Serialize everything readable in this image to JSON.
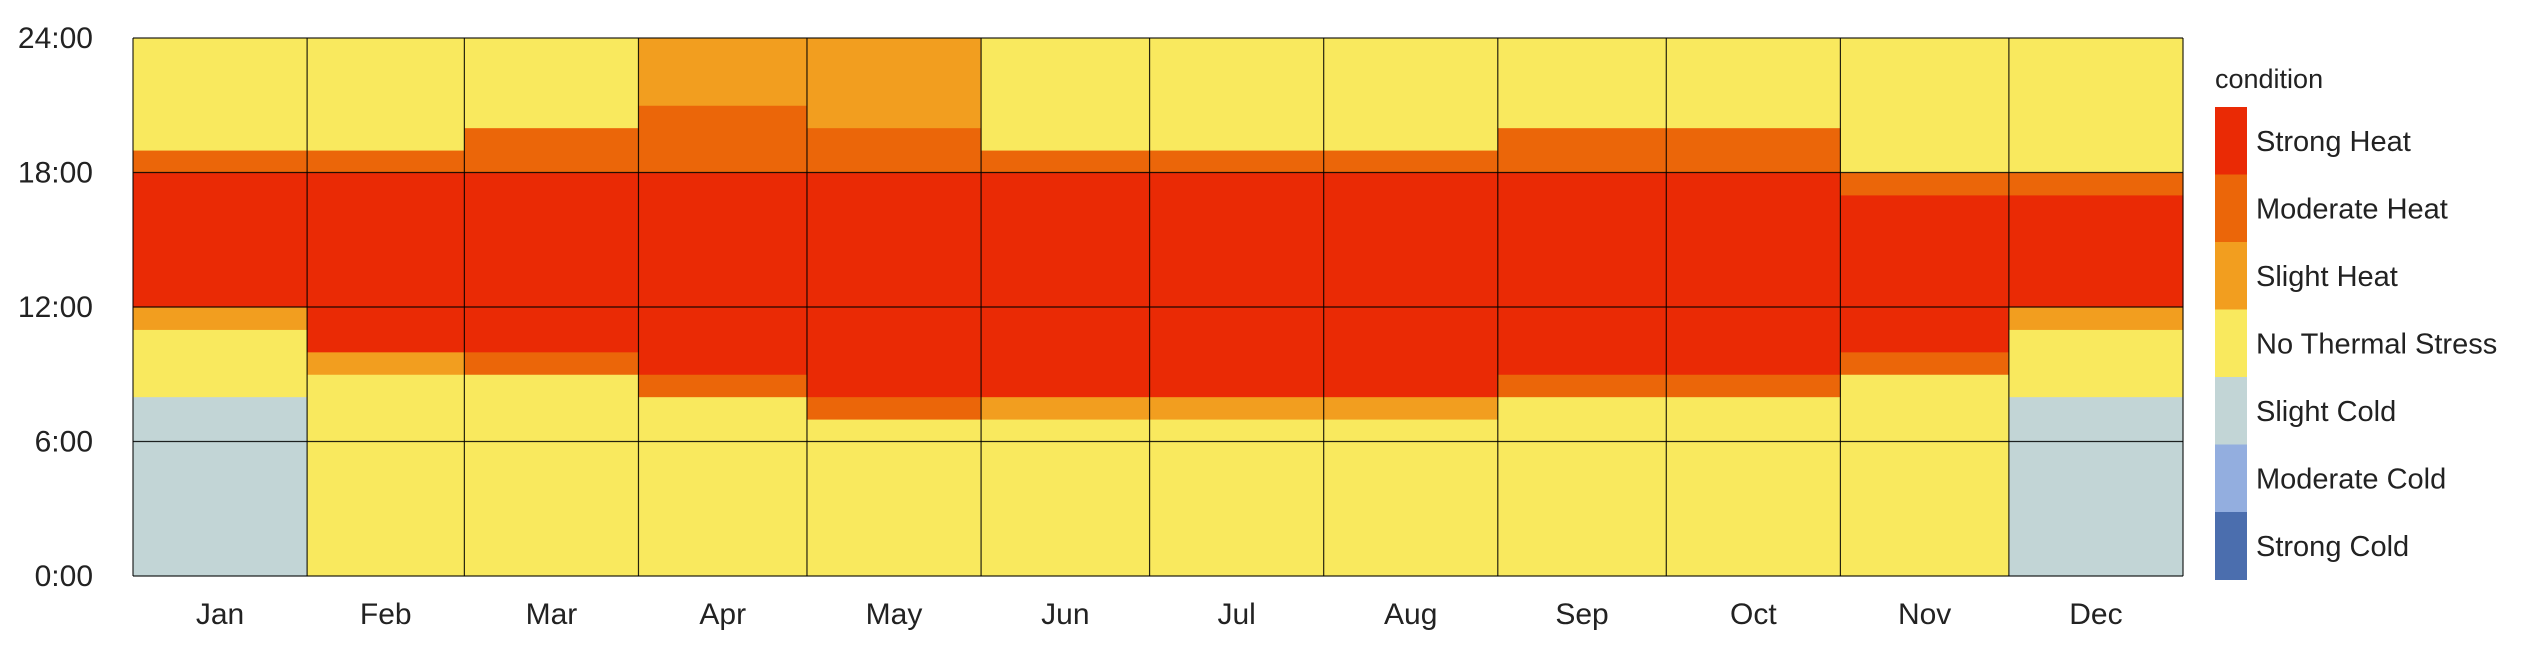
{
  "chart_data": {
    "type": "heatmap",
    "title": "",
    "xlabel": "",
    "ylabel": "",
    "x_tick_labels": [
      "Jan",
      "Feb",
      "Mar",
      "Apr",
      "May",
      "Jun",
      "Jul",
      "Aug",
      "Sep",
      "Oct",
      "Nov",
      "Dec"
    ],
    "y_tick_labels": [
      "0:00",
      "6:00",
      "12:00",
      "18:00",
      "24:00"
    ],
    "y_tick_values": [
      0,
      6,
      12,
      18,
      24
    ],
    "ylim": [
      0,
      24
    ],
    "days_in_month": [
      31,
      28,
      31,
      30,
      31,
      30,
      31,
      31,
      30,
      31,
      30,
      31
    ],
    "grid": true,
    "legend": {
      "title": "condition",
      "placement": "right",
      "categories": [
        {
          "label": "Strong Heat",
          "color": "#EA2A05"
        },
        {
          "label": "Moderate Heat",
          "color": "#EB6609"
        },
        {
          "label": "Slight Heat",
          "color": "#F29E1F"
        },
        {
          "label": "No Thermal Stress",
          "color": "#F9E95E"
        },
        {
          "label": "Slight Cold",
          "color": "#C2D5D6"
        },
        {
          "label": "Moderate Cold",
          "color": "#93AEDF"
        },
        {
          "label": "Strong Cold",
          "color": "#4B6EAE"
        }
      ]
    },
    "approximate_monthly_hourly_condition": {
      "Jan": {
        "00:00-08:00": "Slight Cold",
        "08:00-11:00": "No Thermal Stress",
        "11:00-12:00": "Slight Heat",
        "12:00-18:00": "Strong Heat",
        "18:00-19:00": "Moderate Heat",
        "19:00-24:00": "No Thermal Stress"
      },
      "Feb": {
        "00:00-09:00": "No Thermal Stress",
        "09:00-10:00": "Slight Heat",
        "10:00-18:00": "Strong Heat",
        "18:00-19:00": "Moderate Heat",
        "19:00-24:00": "No Thermal Stress"
      },
      "Mar": {
        "00:00-09:00": "No Thermal Stress",
        "09:00-10:00": "Moderate Heat",
        "10:00-18:00": "Strong Heat",
        "18:00-20:00": "Moderate Heat",
        "20:00-24:00": "No Thermal Stress"
      },
      "Apr": {
        "00:00-08:00": "No Thermal Stress",
        "08:00-09:00": "Moderate Heat",
        "09:00-18:00": "Strong Heat",
        "18:00-21:00": "Moderate Heat",
        "21:00-24:00": "Slight Heat"
      },
      "May": {
        "00:00-07:00": "No Thermal Stress",
        "07:00-08:00": "Moderate Heat",
        "08:00-18:00": "Strong Heat",
        "18:00-20:00": "Moderate Heat",
        "20:00-24:00": "Slight Heat"
      },
      "Jun": {
        "00:00-07:00": "No Thermal Stress",
        "07:00-08:00": "Slight Heat",
        "08:00-18:00": "Strong Heat",
        "18:00-19:00": "Moderate Heat",
        "19:00-24:00": "No Thermal Stress"
      },
      "Jul": {
        "00:00-07:00": "No Thermal Stress",
        "07:00-08:00": "Slight Heat",
        "08:00-18:00": "Strong Heat",
        "18:00-19:00": "Moderate Heat",
        "19:00-24:00": "No Thermal Stress"
      },
      "Aug": {
        "00:00-07:00": "No Thermal Stress",
        "07:00-08:00": "Slight Heat",
        "08:00-18:00": "Strong Heat",
        "18:00-19:00": "Moderate Heat",
        "19:00-24:00": "No Thermal Stress"
      },
      "Sep": {
        "00:00-08:00": "No Thermal Stress",
        "08:00-09:00": "Moderate Heat",
        "09:00-18:00": "Strong Heat",
        "18:00-20:00": "Moderate Heat",
        "20:00-24:00": "No Thermal Stress"
      },
      "Oct": {
        "00:00-08:00": "No Thermal Stress",
        "08:00-09:00": "Moderate Heat",
        "09:00-18:00": "Strong Heat",
        "18:00-20:00": "Moderate Heat",
        "20:00-24:00": "No Thermal Stress"
      },
      "Nov": {
        "00:00-09:00": "No Thermal Stress",
        "09:00-10:00": "Moderate Heat",
        "10:00-17:00": "Strong Heat",
        "17:00-18:00": "Moderate Heat",
        "18:00-24:00": "No Thermal Stress"
      },
      "Dec": {
        "00:00-08:00": "Slight Cold",
        "08:00-11:00": "No Thermal Stress",
        "11:00-12:00": "Slight Heat",
        "12:00-17:00": "Strong Heat",
        "17:00-18:00": "Moderate Heat",
        "18:00-24:00": "No Thermal Stress"
      }
    }
  }
}
